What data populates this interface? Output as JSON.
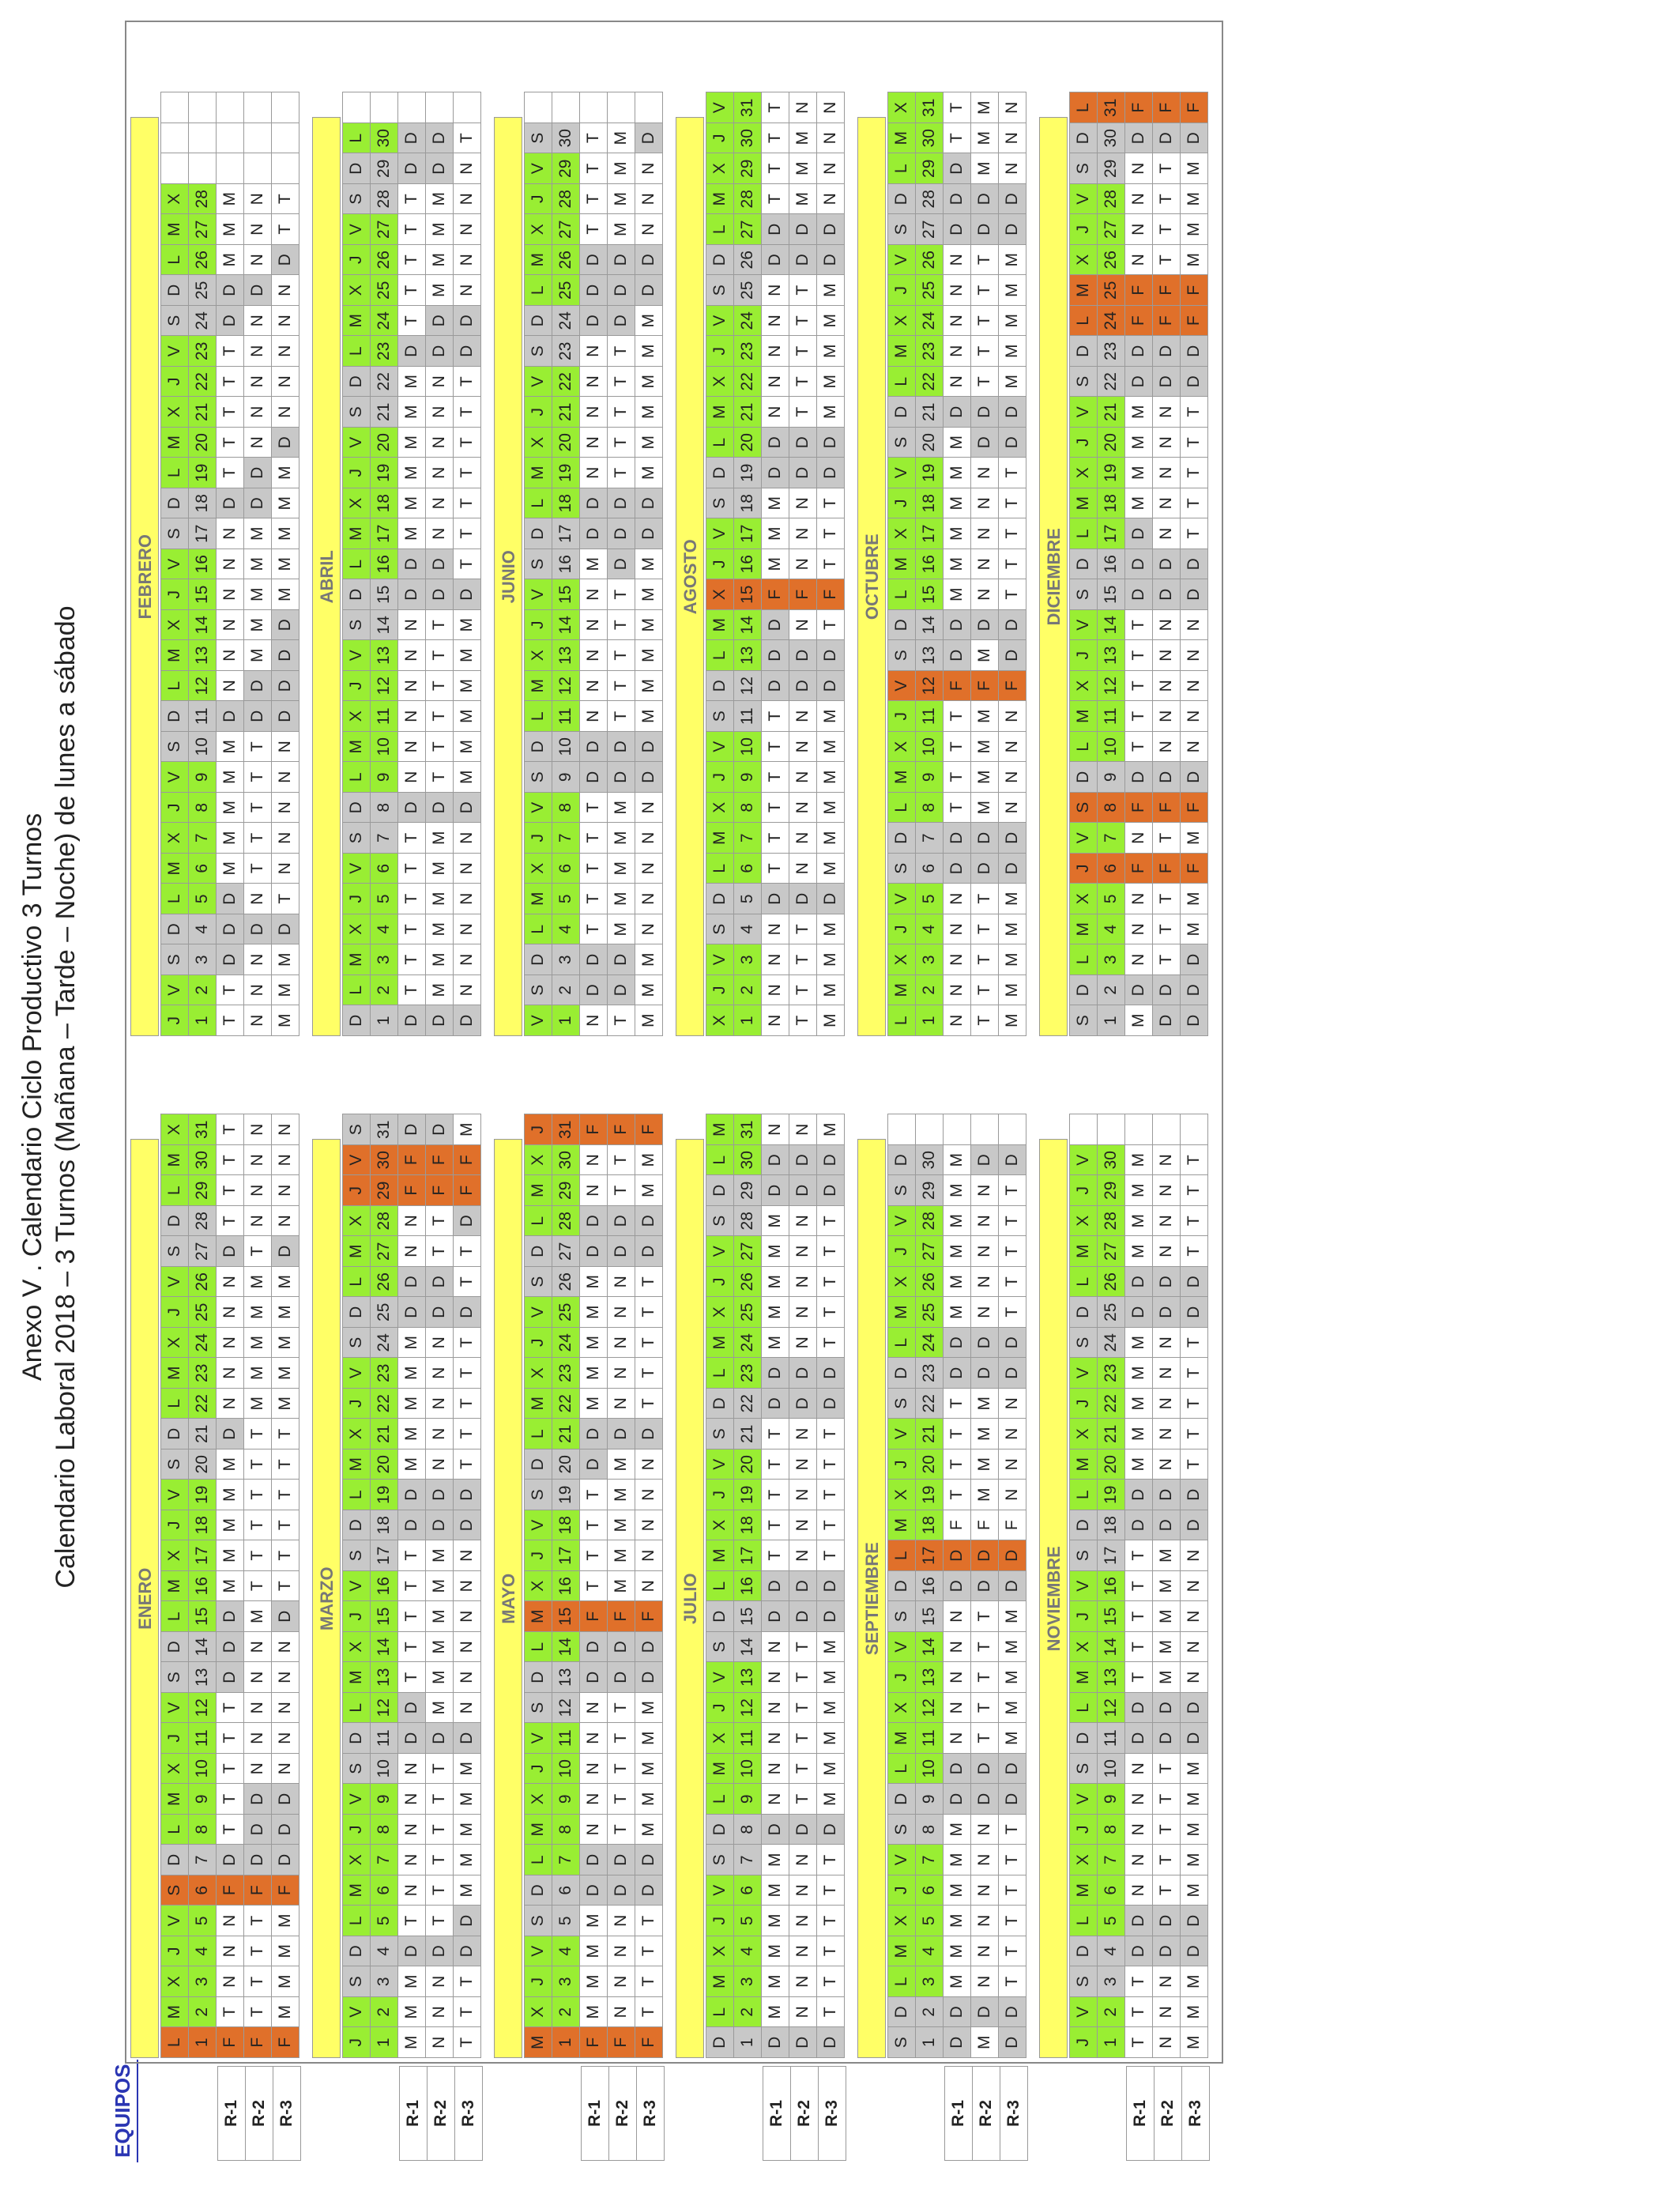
{
  "titles": {
    "line1": "Anexo V . Calendario Ciclo Productivo 3 Turnos",
    "line2": "Calendario Laboral 2018 – 3 Turnos (Mañana – Tarde – Noche) de lunes a sábado"
  },
  "equipos_header": "EQUIPOS",
  "team_labels": [
    "R-1",
    "R-2",
    "R-3"
  ],
  "colors": {
    "weekday": "#99ee33",
    "weekend": "#c8c8c8",
    "holiday": "#e0702a",
    "month_bar": "#ffff66"
  },
  "months": [
    {
      "name": "ENERO",
      "days": [
        "L",
        "M",
        "X",
        "J",
        "V",
        "S",
        "D",
        "L",
        "M",
        "X",
        "J",
        "V",
        "S",
        "D",
        "L",
        "M",
        "X",
        "J",
        "V",
        "S",
        "D",
        "L",
        "M",
        "X",
        "J",
        "V",
        "S",
        "D",
        "L",
        "M",
        "X"
      ],
      "holidays": [
        1,
        6
      ],
      "teams": [
        "FTNNNFDTTTTTDDDMMMMMDNNNNNDTTTT",
        "FTTTTFDDDNNNNNMTTTTTTMMMMMTNNNN",
        "FMMMMFDDDNNNNNDTTTTTTMMMMMDNNNN"
      ]
    },
    {
      "name": "FEBRERO",
      "days": [
        "J",
        "V",
        "S",
        "D",
        "L",
        "M",
        "X",
        "J",
        "V",
        "S",
        "D",
        "L",
        "M",
        "X",
        "J",
        "V",
        "S",
        "D",
        "L",
        "M",
        "X",
        "J",
        "V",
        "S",
        "D",
        "L",
        "M",
        "X"
      ],
      "holidays": [],
      "teams": [
        "TTDDDMMMMMDNNNNNNDTTTTTDDMMM",
        "NNNDNTTTTTDDMMMMMDDNNNNNDNNN",
        "MMMDTNNNNNDDDDMMMMMDNNNNNDTT"
      ]
    },
    {
      "name": "MARZO",
      "days": [
        "J",
        "V",
        "S",
        "D",
        "L",
        "M",
        "X",
        "J",
        "V",
        "S",
        "D",
        "L",
        "M",
        "X",
        "J",
        "V",
        "S",
        "D",
        "L",
        "M",
        "X",
        "J",
        "V",
        "S",
        "D",
        "L",
        "M",
        "X",
        "J",
        "V",
        "S"
      ],
      "holidays": [
        29,
        30
      ],
      "teams": [
        "MMMDTNNNNNDDTTTTTDDMMMMMDDNNFFD",
        "NNNDTTTTTTDMMMMMMDDNNNNNDDTTFFD",
        "TTTDDMMMMMDNNNNNNDDTTTTTDTTDFFM"
      ]
    },
    {
      "name": "ABRIL",
      "days": [
        "D",
        "L",
        "M",
        "X",
        "J",
        "V",
        "S",
        "D",
        "L",
        "M",
        "X",
        "J",
        "V",
        "S",
        "D",
        "L",
        "M",
        "X",
        "J",
        "V",
        "S",
        "D",
        "L",
        "M",
        "X",
        "J",
        "V",
        "S",
        "D",
        "L"
      ],
      "holidays": [],
      "teams": [
        "DTTTTTTDNNNNNNDDMMMMMMDTTTTTDD",
        "DMMMMMMDTTTTTTDDNNNNNNDDMMMMDD",
        "DNNNNNNDMMMMMMDTTTTTTTDDNNNNNT"
      ]
    },
    {
      "name": "MAYO",
      "days": [
        "M",
        "X",
        "J",
        "V",
        "S",
        "D",
        "L",
        "M",
        "X",
        "J",
        "V",
        "S",
        "D",
        "L",
        "M",
        "X",
        "J",
        "V",
        "S",
        "D",
        "L",
        "M",
        "X",
        "J",
        "V",
        "S",
        "D",
        "L",
        "M",
        "X",
        "J"
      ],
      "holidays": [
        1,
        15,
        31
      ],
      "teams": [
        "FMMMMDDNNNNNDDFTTTTDDMMMMMDDNNF",
        "FNNNNDDTTTTTDDFMMMMMDNNNNNDDTTF",
        "FTTTTDDMMMMMDDFNNNNNDTTTTTDDMMF"
      ]
    },
    {
      "name": "JUNIO",
      "days": [
        "V",
        "S",
        "D",
        "L",
        "M",
        "X",
        "J",
        "V",
        "S",
        "D",
        "L",
        "M",
        "X",
        "J",
        "V",
        "S",
        "D",
        "L",
        "M",
        "X",
        "J",
        "V",
        "S",
        "D",
        "L",
        "M",
        "X",
        "J",
        "V",
        "S"
      ],
      "holidays": [],
      "teams": [
        "NDDTTTTTDDNNNNNMDDNNNNNDDDTTTT",
        "TDDMMMMMDDTTTTTDDDTTTTTDDDMMMM",
        "MMMNNNNNDDMMMMMMDDMMMMMMDDNNND"
      ]
    },
    {
      "name": "JULIO",
      "days": [
        "D",
        "L",
        "M",
        "X",
        "J",
        "V",
        "S",
        "D",
        "L",
        "M",
        "X",
        "J",
        "V",
        "S",
        "D",
        "L",
        "M",
        "X",
        "J",
        "V",
        "S",
        "D",
        "L",
        "M",
        "X",
        "J",
        "V",
        "S",
        "D",
        "L",
        "M"
      ],
      "holidays": [],
      "teams": [
        "DMMMMMMDNNNNNNDDTTTTTDDMMMMMDDN",
        "DNNNNNNDTTTTTTDDNNNNNDDNNNNNDDN",
        "DTTTTTTDMMMMMMDDTTTTTDDTTTTTDDM"
      ]
    },
    {
      "name": "AGOSTO",
      "days": [
        "X",
        "J",
        "V",
        "S",
        "D",
        "L",
        "M",
        "X",
        "J",
        "V",
        "S",
        "D",
        "L",
        "M",
        "X",
        "J",
        "V",
        "S",
        "D",
        "L",
        "M",
        "X",
        "J",
        "V",
        "S",
        "D",
        "L",
        "M",
        "X",
        "J",
        "V"
      ],
      "holidays": [
        15
      ],
      "teams": [
        "NNNNDTTTTTTDDDFMMMDDNNNNNDDTTTT",
        "TTTTDNNNNNNDDNFNNNDDTTTTTDDMMMN",
        "MMMMDMMMMMMDDTFTTTDDMMMMMDDNNNN"
      ]
    },
    {
      "name": "SEPTIEMBRE",
      "days": [
        "S",
        "D",
        "L",
        "M",
        "X",
        "J",
        "V",
        "S",
        "D",
        "L",
        "M",
        "X",
        "J",
        "V",
        "S",
        "D",
        "L",
        "M",
        "X",
        "J",
        "V",
        "S",
        "D",
        "L",
        "M",
        "X",
        "J",
        "V",
        "S",
        "D"
      ],
      "holidays": [
        17
      ],
      "teams": [
        "DDMMMMMMDDNNNNNDDFTTTTDDMMMMMM",
        "MDNNNNNNDDTTTTTDDFMMMMDDNNNNND",
        "DDTTTTTTDDMMMMMDDFNNNNDDTTTTTD"
      ]
    },
    {
      "name": "OCTUBRE",
      "days": [
        "L",
        "M",
        "X",
        "J",
        "V",
        "S",
        "D",
        "L",
        "M",
        "X",
        "J",
        "V",
        "S",
        "D",
        "L",
        "M",
        "X",
        "J",
        "V",
        "S",
        "D",
        "L",
        "M",
        "X",
        "J",
        "V",
        "S",
        "D",
        "L",
        "M",
        "X"
      ],
      "holidays": [
        12
      ],
      "teams": [
        "NNNNNDDTTTTFDDMMMMMMDNNNNNDDDTT",
        "TTTTTDDMMMMFMDNNNNNDDTTTTTDDMMM",
        "MMMMMDDNNNNFDDTTTTTDDMMMMMDDNNN"
      ]
    },
    {
      "name": "NOVIEMBRE",
      "days": [
        "J",
        "V",
        "S",
        "D",
        "L",
        "M",
        "X",
        "J",
        "V",
        "S",
        "D",
        "L",
        "M",
        "X",
        "J",
        "V",
        "S",
        "D",
        "L",
        "M",
        "X",
        "J",
        "V",
        "S",
        "D",
        "L",
        "M",
        "X",
        "J",
        "V"
      ],
      "holidays": [],
      "teams": [
        "TTTDDNNNNNDDTTTTTDDMMMMMDDMMMM",
        "NNNDDTTTTTDDMMMMMDDNNNNNDDNNNN",
        "MMMDDMMMMMDDNNNNNDDTTTTTDDTTTT"
      ]
    },
    {
      "name": "DICIEMBRE",
      "days": [
        "S",
        "D",
        "L",
        "M",
        "X",
        "J",
        "V",
        "S",
        "D",
        "L",
        "M",
        "X",
        "J",
        "V",
        "S",
        "D",
        "L",
        "M",
        "X",
        "J",
        "V",
        "S",
        "D",
        "L",
        "M",
        "X",
        "J",
        "V",
        "S",
        "D",
        "L"
      ],
      "holidays": [
        6,
        8,
        24,
        25,
        31
      ],
      "teams": [
        "MDNNNFNFDTTTTTDDDMMMMDDFFNNNNDF",
        "DDTTTFTFDNNNNNDDNNNNNDDFFTTTTDF",
        "DDDMMFMFDNNNNNDDTTTTTDDFFMMMMDF"
      ]
    }
  ]
}
